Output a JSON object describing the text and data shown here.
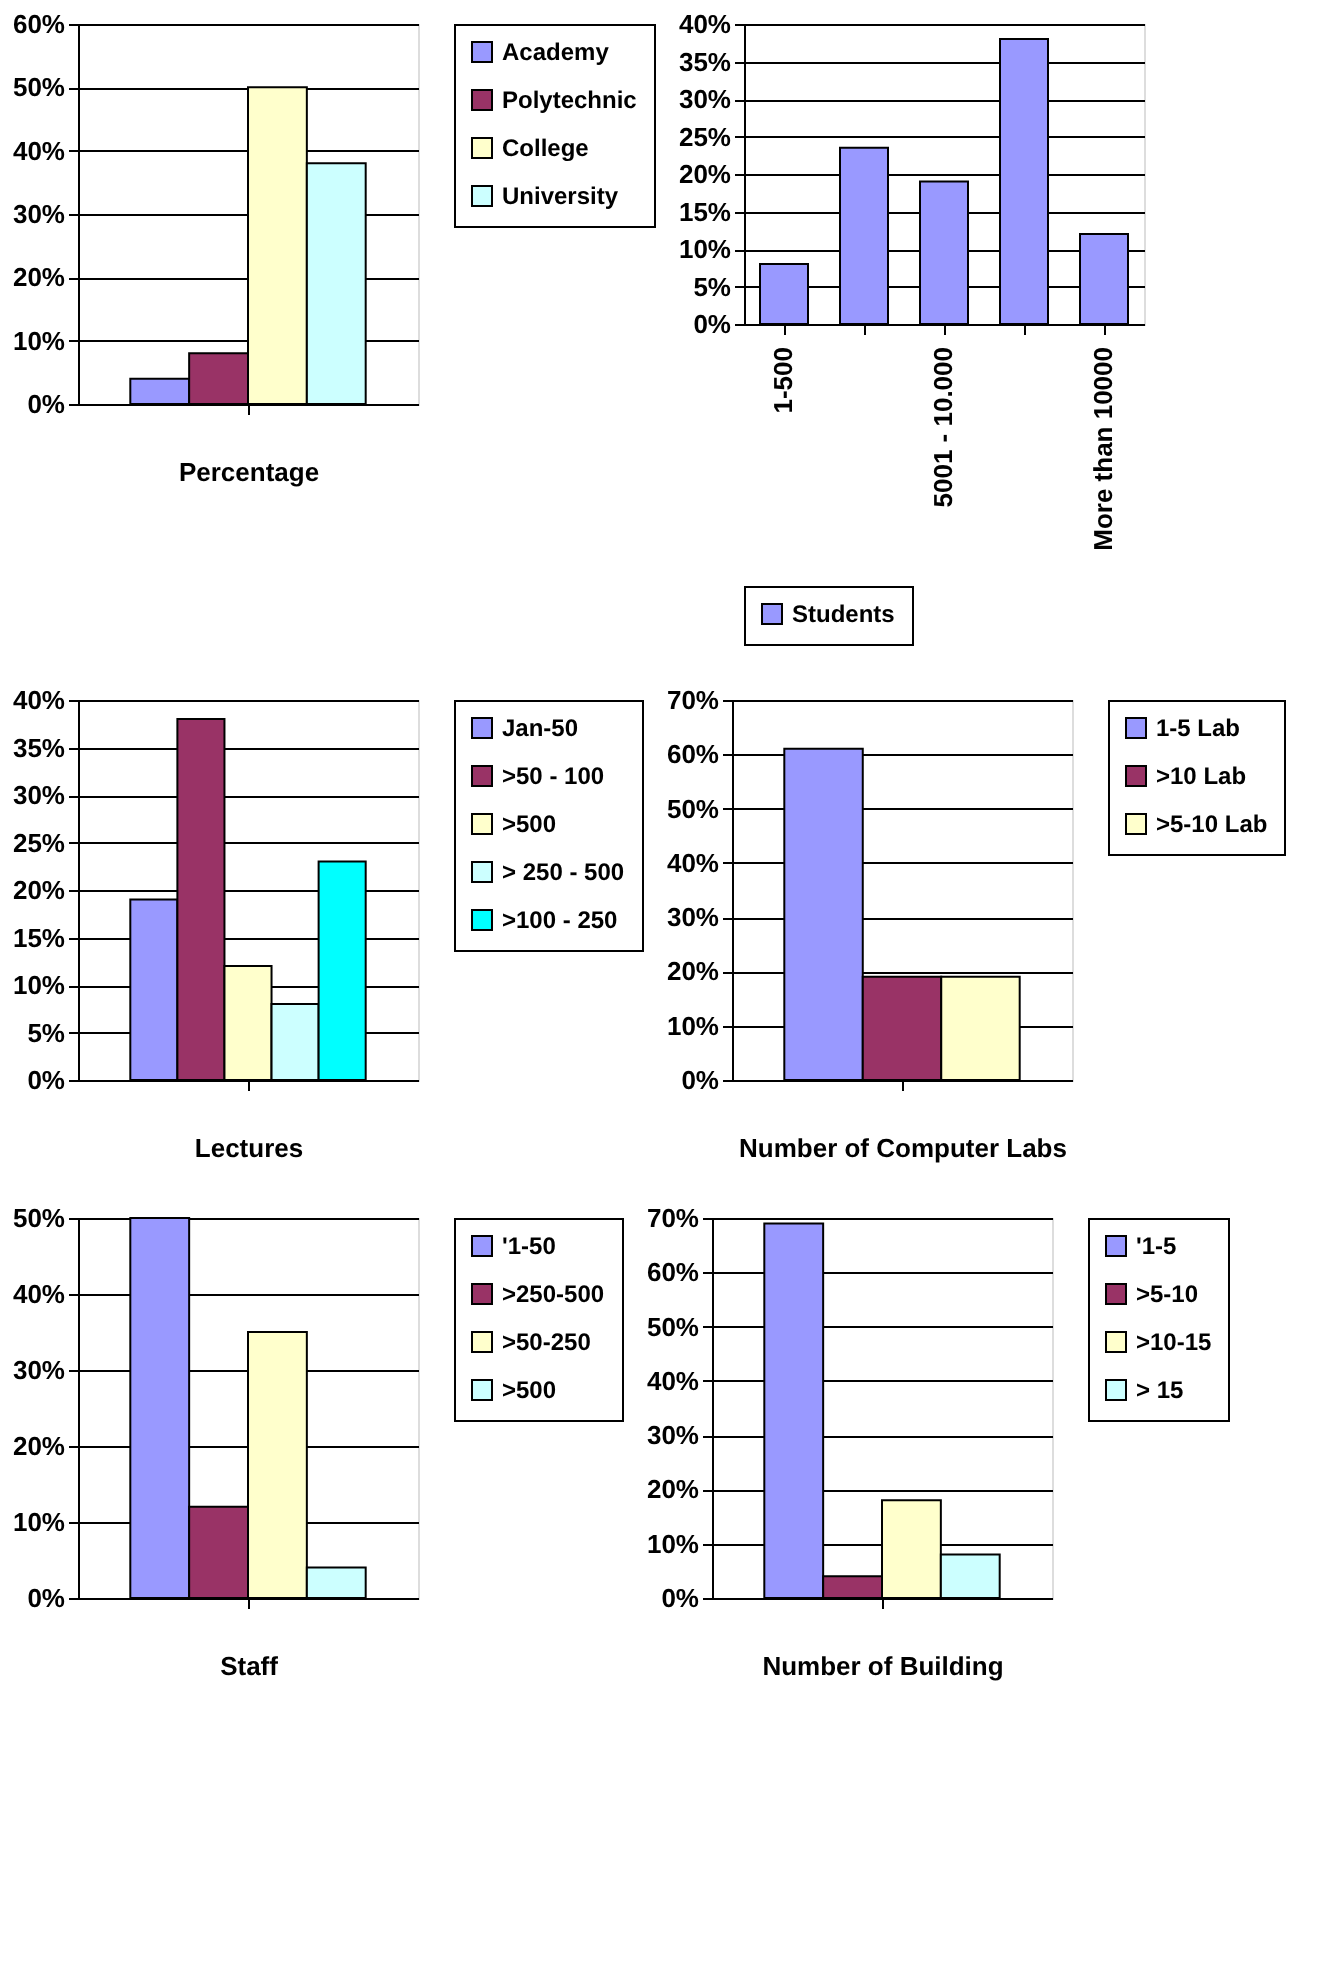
{
  "chart_data": [
    {
      "type": "bar",
      "xlabel": "Percentage",
      "categories": [
        null
      ],
      "legend": "right",
      "grid": "y",
      "ylim": [
        0,
        60
      ],
      "yticks": [
        {
          "value": 0,
          "label": "0%"
        },
        {
          "value": 10,
          "label": "10%"
        },
        {
          "value": 20,
          "label": "20%"
        },
        {
          "value": 30,
          "label": "30%"
        },
        {
          "value": 40,
          "label": "40%"
        },
        {
          "value": 50,
          "label": "50%"
        },
        {
          "value": 60,
          "label": "60%"
        }
      ],
      "series": [
        {
          "name": "Academy",
          "color": "#9999ff",
          "values": [
            4
          ]
        },
        {
          "name": "Polytechnic",
          "color": "#993366",
          "values": [
            8
          ]
        },
        {
          "name": "College",
          "color": "#ffffcc",
          "values": [
            50
          ]
        },
        {
          "name": "University",
          "color": "#ccffff",
          "values": [
            38
          ]
        }
      ]
    },
    {
      "type": "bar",
      "categories": [
        "1-500",
        null,
        "5001 - 10.000",
        null,
        "More than 10000"
      ],
      "legend": "bottom",
      "grid": "y",
      "ylim": [
        0,
        40
      ],
      "yticks": [
        {
          "value": 0,
          "label": "0%"
        },
        {
          "value": 5,
          "label": "5%"
        },
        {
          "value": 10,
          "label": "10%"
        },
        {
          "value": 15,
          "label": "15%"
        },
        {
          "value": 20,
          "label": "20%"
        },
        {
          "value": 25,
          "label": "25%"
        },
        {
          "value": 30,
          "label": "30%"
        },
        {
          "value": 35,
          "label": "35%"
        },
        {
          "value": 40,
          "label": "40%"
        }
      ],
      "series": [
        {
          "name": "Students",
          "color": "#9999ff",
          "values": [
            8,
            23.5,
            19,
            38,
            12
          ]
        }
      ]
    },
    {
      "type": "bar",
      "xlabel": "Lectures",
      "categories": [
        null
      ],
      "legend": "right",
      "grid": "y",
      "ylim": [
        0,
        40
      ],
      "yticks": [
        {
          "value": 0,
          "label": "0%"
        },
        {
          "value": 5,
          "label": "5%"
        },
        {
          "value": 10,
          "label": "10%"
        },
        {
          "value": 15,
          "label": "15%"
        },
        {
          "value": 20,
          "label": "20%"
        },
        {
          "value": 25,
          "label": "25%"
        },
        {
          "value": 30,
          "label": "30%"
        },
        {
          "value": 35,
          "label": "35%"
        },
        {
          "value": 40,
          "label": "40%"
        }
      ],
      "series": [
        {
          "name": "Jan-50",
          "color": "#9999ff",
          "values": [
            19
          ]
        },
        {
          "name": ">50 - 100",
          "color": "#993366",
          "values": [
            38
          ]
        },
        {
          "name": ">500",
          "color": "#ffffcc",
          "values": [
            12
          ]
        },
        {
          "name": "> 250 - 500",
          "color": "#ccffff",
          "values": [
            8
          ]
        },
        {
          "name": ">100 - 250",
          "color": "#00ffff",
          "values": [
            23
          ]
        }
      ]
    },
    {
      "type": "bar",
      "xlabel": "Number of Computer Labs",
      "categories": [
        null
      ],
      "legend": "right",
      "grid": "y",
      "ylim": [
        0,
        70
      ],
      "yticks": [
        {
          "value": 0,
          "label": "0%"
        },
        {
          "value": 10,
          "label": "10%"
        },
        {
          "value": 20,
          "label": "20%"
        },
        {
          "value": 30,
          "label": "30%"
        },
        {
          "value": 40,
          "label": "40%"
        },
        {
          "value": 50,
          "label": "50%"
        },
        {
          "value": 60,
          "label": "60%"
        },
        {
          "value": 70,
          "label": "70%"
        }
      ],
      "series": [
        {
          "name": "1-5 Lab",
          "color": "#9999ff",
          "values": [
            61
          ]
        },
        {
          "name": ">10 Lab",
          "color": "#993366",
          "values": [
            19
          ]
        },
        {
          "name": ">5-10 Lab",
          "color": "#ffffcc",
          "values": [
            19
          ]
        }
      ]
    },
    {
      "type": "bar",
      "xlabel": "Staff",
      "categories": [
        null
      ],
      "legend": "right",
      "grid": "y",
      "ylim": [
        0,
        50
      ],
      "yticks": [
        {
          "value": 0,
          "label": "0%"
        },
        {
          "value": 10,
          "label": "10%"
        },
        {
          "value": 20,
          "label": "20%"
        },
        {
          "value": 30,
          "label": "30%"
        },
        {
          "value": 40,
          "label": "40%"
        },
        {
          "value": 50,
          "label": "50%"
        }
      ],
      "series": [
        {
          "name": "'1-50",
          "color": "#9999ff",
          "values": [
            50
          ]
        },
        {
          "name": ">250-500",
          "color": "#993366",
          "values": [
            12
          ]
        },
        {
          "name": ">50-250",
          "color": "#ffffcc",
          "values": [
            35
          ]
        },
        {
          "name": ">500",
          "color": "#ccffff",
          "values": [
            4
          ]
        }
      ]
    },
    {
      "type": "bar",
      "xlabel": "Number of Building",
      "categories": [
        null
      ],
      "legend": "right",
      "grid": "y",
      "ylim": [
        0,
        70
      ],
      "yticks": [
        {
          "value": 0,
          "label": "0%"
        },
        {
          "value": 10,
          "label": "10%"
        },
        {
          "value": 20,
          "label": "20%"
        },
        {
          "value": 30,
          "label": "30%"
        },
        {
          "value": 40,
          "label": "40%"
        },
        {
          "value": 50,
          "label": "50%"
        },
        {
          "value": 60,
          "label": "60%"
        },
        {
          "value": 70,
          "label": "70%"
        }
      ],
      "series": [
        {
          "name": "'1-5",
          "color": "#9999ff",
          "values": [
            69
          ]
        },
        {
          "name": ">5-10",
          "color": "#993366",
          "values": [
            4
          ]
        },
        {
          "name": ">10-15",
          "color": "#ffffcc",
          "values": [
            18
          ]
        },
        {
          "name": "> 15",
          "color": "#ccffff",
          "values": [
            8
          ]
        }
      ]
    }
  ]
}
